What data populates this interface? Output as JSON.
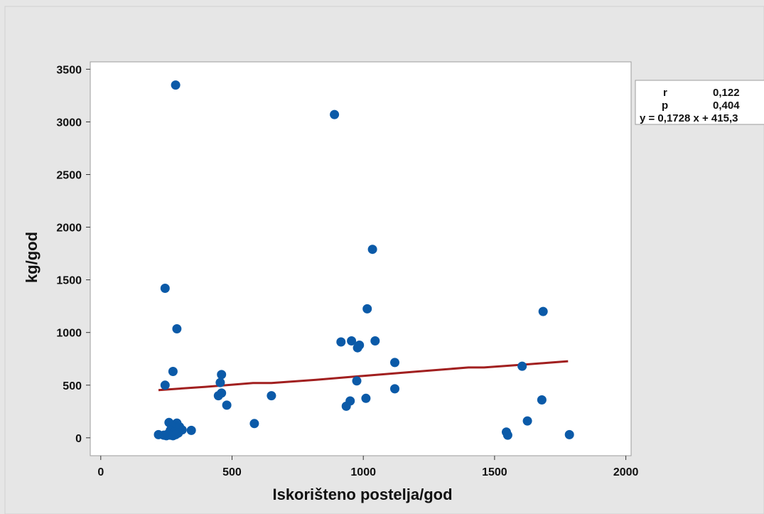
{
  "chart_data": {
    "type": "scatter",
    "title": "",
    "xlabel": "Iskorišteno postelja/god",
    "ylabel": "kg/god",
    "xlim": [
      -40,
      2020
    ],
    "ylim": [
      -170,
      3570
    ],
    "x_ticks": [
      0,
      500,
      1000,
      1500,
      2000
    ],
    "y_ticks": [
      0,
      500,
      1000,
      1500,
      2000,
      2500,
      3000,
      3500
    ],
    "grid": false,
    "legend": "none",
    "colors": {
      "points": "#0b5aa8",
      "fit_line": "#a11f1f",
      "page_bg": "#e6e6e6",
      "plot_bg": "#ffffff"
    },
    "points": [
      [
        285,
        3350
      ],
      [
        890,
        3070
      ],
      [
        1035,
        1790
      ],
      [
        245,
        1420
      ],
      [
        1015,
        1225
      ],
      [
        1685,
        1200
      ],
      [
        290,
        1035
      ],
      [
        915,
        910
      ],
      [
        955,
        920
      ],
      [
        1045,
        920
      ],
      [
        985,
        880
      ],
      [
        978,
        855
      ],
      [
        1120,
        715
      ],
      [
        1605,
        680
      ],
      [
        275,
        630
      ],
      [
        460,
        600
      ],
      [
        455,
        525
      ],
      [
        975,
        540
      ],
      [
        245,
        500
      ],
      [
        1120,
        465
      ],
      [
        460,
        425
      ],
      [
        448,
        400
      ],
      [
        650,
        400
      ],
      [
        1010,
        375
      ],
      [
        1680,
        360
      ],
      [
        950,
        350
      ],
      [
        935,
        300
      ],
      [
        480,
        310
      ],
      [
        1625,
        160
      ],
      [
        585,
        135
      ],
      [
        260,
        145
      ],
      [
        290,
        140
      ],
      [
        270,
        110
      ],
      [
        300,
        105
      ],
      [
        265,
        70
      ],
      [
        310,
        75
      ],
      [
        345,
        70
      ],
      [
        280,
        55
      ],
      [
        295,
        45
      ],
      [
        255,
        35
      ],
      [
        1545,
        55
      ],
      [
        220,
        30
      ],
      [
        240,
        25
      ],
      [
        250,
        20
      ],
      [
        265,
        25
      ],
      [
        275,
        20
      ],
      [
        285,
        30
      ],
      [
        1550,
        25
      ],
      [
        1785,
        30
      ]
    ],
    "fit_line": {
      "x": [
        220,
        400,
        580,
        650,
        820,
        1000,
        1200,
        1400,
        1460,
        1610,
        1780
      ],
      "y": [
        453,
        484,
        520,
        520,
        550,
        588,
        628,
        668,
        668,
        695,
        727
      ]
    },
    "stats": {
      "r_label": "r",
      "r_value": "0,122",
      "p_label": "p",
      "p_value": "0,404",
      "equation": "y = 0,1728 x + 415,3"
    }
  }
}
